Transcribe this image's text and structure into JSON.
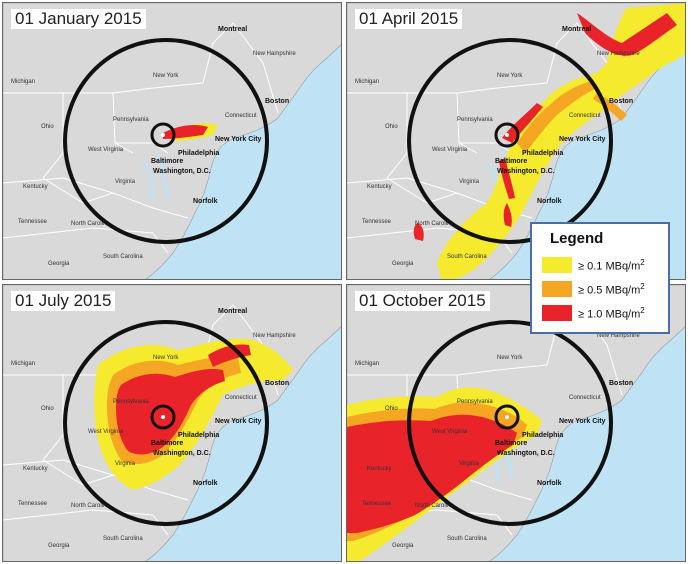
{
  "panels": [
    {
      "date": "01 January 2015"
    },
    {
      "date": "01 April 2015"
    },
    {
      "date": "01 July 2015"
    },
    {
      "date": "01 October 2015"
    }
  ],
  "cities": {
    "new_york": "New York City",
    "philadelphia": "Philadelphia",
    "baltimore": "Baltimore",
    "washington": "Washington, D.C.",
    "norfolk": "Norfolk",
    "boston": "Boston",
    "montreal": "Montreal"
  },
  "states": {
    "pennsylvania": "Pennsylvania",
    "new_york": "New York",
    "ohio": "Ohio",
    "michigan": "Michigan",
    "virginia": "Virginia",
    "west_virginia": "West Virginia",
    "kentucky": "Kentucky",
    "north_carolina": "North Carolina",
    "tennessee": "Tennessee",
    "connecticut": "Connecticut",
    "new_hampshire": "New Hampshire",
    "south_carolina": "South Carolina",
    "georgia": "Georgia"
  },
  "legend": {
    "title": "Legend",
    "items": [
      {
        "label": "≥ 0.1 MBq/m",
        "exp": "2",
        "color": "#f5ea2e"
      },
      {
        "label": "≥ 0.5 MBq/m",
        "exp": "2",
        "color": "#f5a623"
      },
      {
        "label": "≥ 1.0 MBq/m",
        "exp": "2",
        "color": "#e8242a"
      }
    ]
  },
  "colors": {
    "ocean": "#bfe3f5",
    "land": "#d9d9d9",
    "low": "#f5ea2e",
    "mid": "#f5a623",
    "high": "#e8242a",
    "ring": "#111111"
  }
}
